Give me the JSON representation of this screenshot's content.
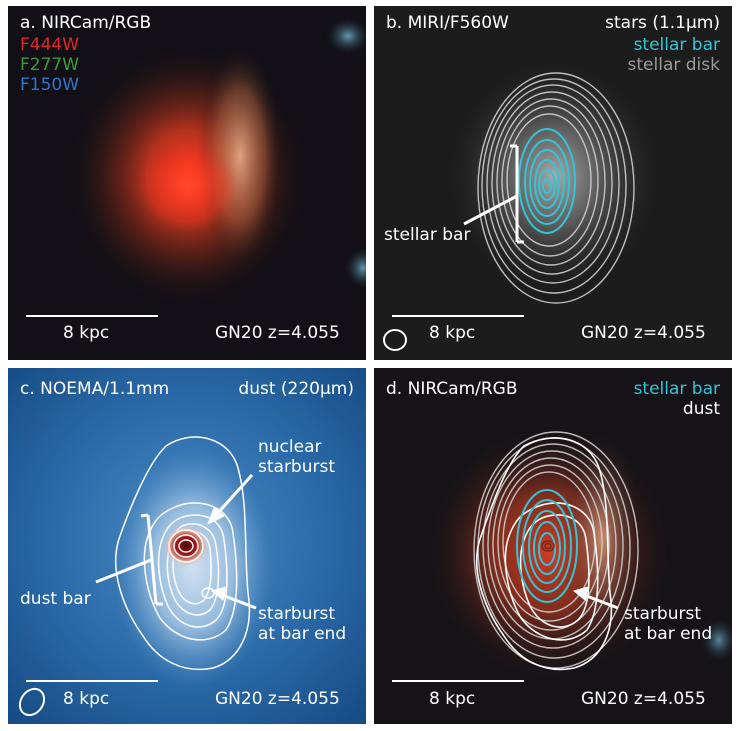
{
  "figure": {
    "panels": [
      {
        "id": "a",
        "title": "a. NIRCam/RGB",
        "legend": [
          {
            "label": "F444W",
            "color": "#e0262b"
          },
          {
            "label": "F277W",
            "color": "#3a9a3a"
          },
          {
            "label": "F150W",
            "color": "#2f74c8"
          }
        ],
        "scalebar_label": "8 kpc",
        "source_label": "GN20 z=4.055"
      },
      {
        "id": "b",
        "title": "b. MIRI/F560W",
        "legend": [
          {
            "label": "stars (1.1μm)",
            "color": "#ffffff"
          },
          {
            "label": "stellar bar",
            "color": "#33c4d6"
          },
          {
            "label": "stellar disk",
            "color": "#9a9a9a"
          }
        ],
        "annotations": [
          "stellar bar"
        ],
        "scalebar_label": "8 kpc",
        "source_label": "GN20 z=4.055"
      },
      {
        "id": "c",
        "title": "c. NOEMA/1.1mm",
        "legend": [
          {
            "label": "dust (220μm)",
            "color": "#ffffff"
          }
        ],
        "annotations": [
          "nuclear",
          "starburst",
          "dust bar",
          "starburst",
          "at bar end"
        ],
        "scalebar_label": "8 kpc",
        "source_label": "GN20 z=4.055"
      },
      {
        "id": "d",
        "title": "d. NIRCam/RGB",
        "legend": [
          {
            "label": "stellar bar",
            "color": "#33c4d6"
          },
          {
            "label": "dust",
            "color": "#ffffff"
          }
        ],
        "annotations": [
          "starburst",
          "at bar end"
        ],
        "scalebar_label": "8 kpc",
        "source_label": "GN20 z=4.055"
      }
    ]
  }
}
